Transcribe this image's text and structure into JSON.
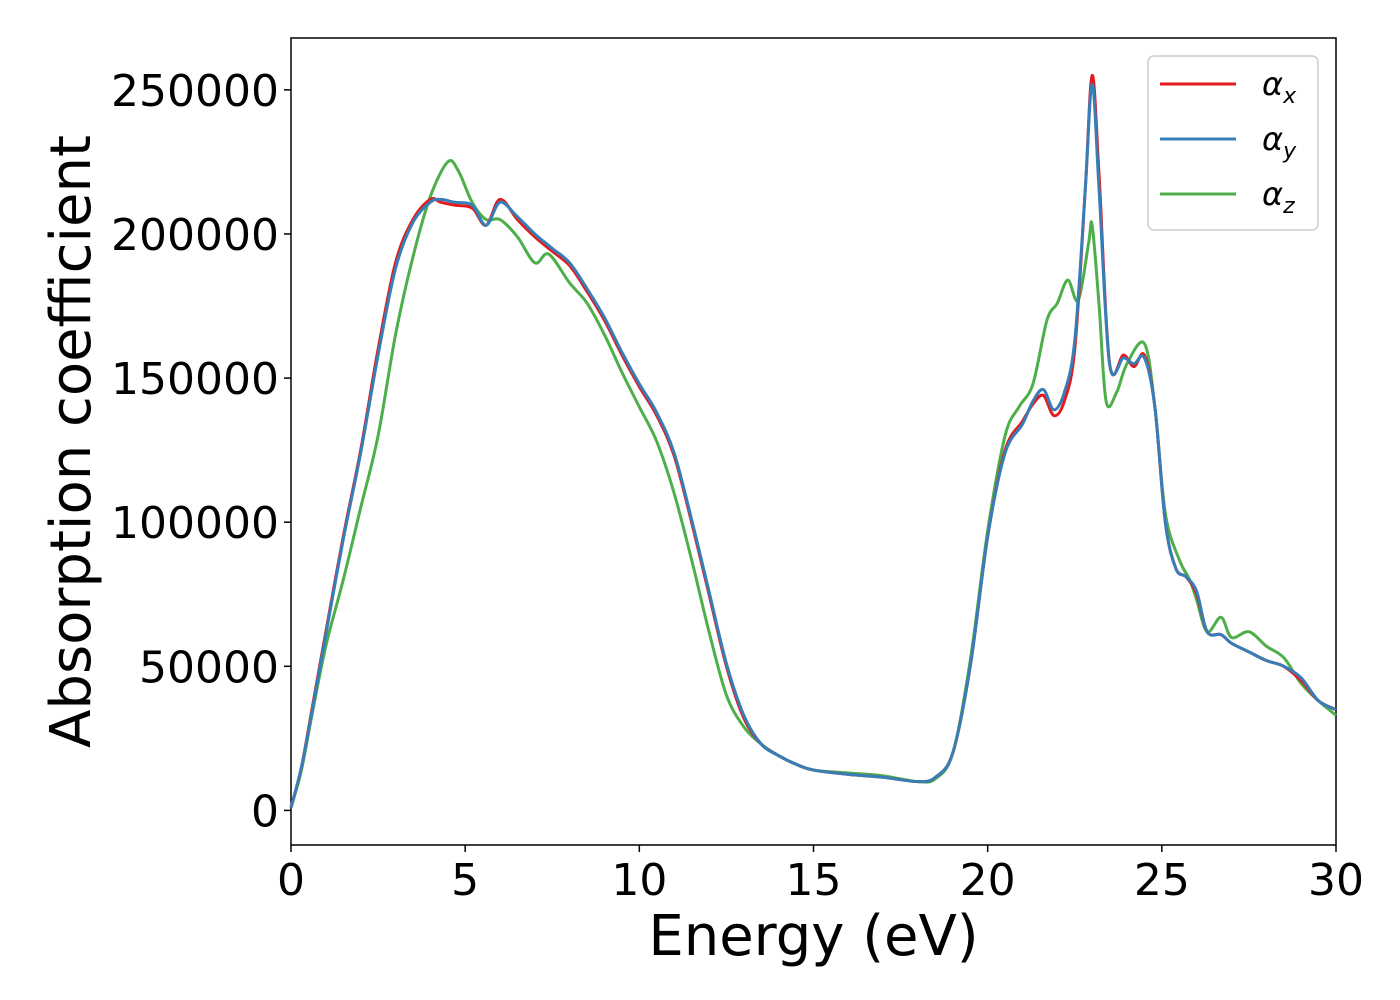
{
  "chart_data": {
    "type": "line",
    "title": "",
    "xlabel": "Energy (eV)",
    "ylabel": "Absorption coefficient",
    "xlim": [
      0,
      30
    ],
    "ylim": [
      -12000,
      268000
    ],
    "xticks": [
      0,
      5,
      10,
      15,
      20,
      25,
      30
    ],
    "yticks": [
      0,
      50000,
      100000,
      150000,
      200000,
      250000
    ],
    "grid": false,
    "legend_position": "top-right",
    "series": [
      {
        "name": "αx",
        "legend_base": "α",
        "legend_sub": "x",
        "color": "#e41a1c",
        "x": [
          0,
          0.3,
          0.6,
          1.0,
          1.5,
          2.0,
          2.5,
          3.0,
          3.5,
          4.0,
          4.3,
          4.7,
          5.2,
          5.6,
          6.0,
          6.5,
          7.0,
          7.5,
          8.0,
          8.5,
          9.0,
          9.5,
          10.0,
          10.5,
          11.0,
          11.5,
          12.0,
          12.5,
          13.0,
          13.5,
          14.0,
          14.5,
          15.0,
          16.0,
          17.0,
          18.0,
          18.5,
          19.0,
          19.5,
          20.0,
          20.5,
          21.0,
          21.3,
          21.6,
          21.9,
          22.2,
          22.5,
          22.8,
          23.0,
          23.2,
          23.5,
          23.9,
          24.2,
          24.5,
          24.8,
          25.1,
          25.4,
          25.7,
          26.0,
          26.3,
          26.7,
          27.0,
          27.5,
          28.0,
          28.5,
          29.0,
          29.5,
          30.0
        ],
        "values": [
          1000,
          15000,
          35000,
          62000,
          95000,
          125000,
          160000,
          190000,
          205000,
          212000,
          211000,
          210000,
          209000,
          203000,
          212000,
          205000,
          199000,
          194000,
          189000,
          180000,
          170000,
          158000,
          147000,
          137000,
          123000,
          100000,
          75000,
          50000,
          32000,
          23000,
          19000,
          16000,
          14000,
          12500,
          11500,
          10000,
          11500,
          20000,
          50000,
          95000,
          125000,
          135000,
          141000,
          144000,
          137000,
          142000,
          160000,
          215000,
          255000,
          220000,
          155000,
          158000,
          154000,
          158000,
          140000,
          100000,
          84000,
          81000,
          75000,
          62000,
          61000,
          58000,
          55000,
          52000,
          50000,
          45000,
          38000,
          35000
        ]
      },
      {
        "name": "αy",
        "legend_base": "α",
        "legend_sub": "y",
        "color": "#377eb8",
        "x": [
          0,
          0.3,
          0.6,
          1.0,
          1.5,
          2.0,
          2.5,
          3.0,
          3.5,
          4.0,
          4.3,
          4.7,
          5.2,
          5.6,
          6.0,
          6.5,
          7.0,
          7.5,
          8.0,
          8.5,
          9.0,
          9.5,
          10.0,
          10.5,
          11.0,
          11.5,
          12.0,
          12.5,
          13.0,
          13.5,
          14.0,
          14.5,
          15.0,
          16.0,
          17.0,
          18.0,
          18.5,
          19.0,
          19.5,
          20.0,
          20.5,
          21.0,
          21.3,
          21.6,
          21.9,
          22.2,
          22.5,
          22.8,
          23.0,
          23.2,
          23.5,
          23.9,
          24.2,
          24.5,
          24.8,
          25.1,
          25.4,
          25.7,
          26.0,
          26.3,
          26.7,
          27.0,
          27.5,
          28.0,
          28.5,
          29.0,
          29.5,
          30.0
        ],
        "values": [
          1000,
          15000,
          34000,
          61000,
          94000,
          124000,
          158000,
          188000,
          204000,
          211000,
          212000,
          211000,
          210000,
          203000,
          211000,
          206000,
          200000,
          195000,
          190000,
          181000,
          171000,
          159000,
          148000,
          138000,
          124000,
          101000,
          76000,
          51000,
          33000,
          23000,
          19000,
          16000,
          14000,
          12500,
          11500,
          10000,
          11500,
          20000,
          50000,
          95000,
          124000,
          134000,
          142000,
          146000,
          139000,
          145000,
          163000,
          215000,
          252000,
          215000,
          155000,
          157000,
          155000,
          157000,
          140000,
          100000,
          84000,
          81000,
          76000,
          62000,
          61000,
          58000,
          55000,
          52000,
          50000,
          46000,
          38000,
          35000
        ]
      },
      {
        "name": "αz",
        "legend_base": "α",
        "legend_sub": "z",
        "color": "#4daf4a",
        "x": [
          0,
          0.3,
          0.6,
          1.0,
          1.5,
          2.0,
          2.5,
          3.0,
          3.5,
          4.0,
          4.5,
          4.8,
          5.2,
          5.6,
          6.0,
          6.5,
          7.0,
          7.4,
          8.0,
          8.5,
          9.0,
          9.5,
          10.0,
          10.5,
          11.0,
          11.5,
          12.0,
          12.5,
          13.0,
          13.5,
          14.0,
          14.5,
          15.0,
          16.0,
          17.0,
          18.0,
          18.5,
          19.0,
          19.5,
          20.0,
          20.5,
          20.9,
          21.3,
          21.7,
          22.0,
          22.3,
          22.6,
          22.9,
          23.0,
          23.2,
          23.4,
          23.7,
          24.0,
          24.5,
          24.8,
          25.1,
          25.5,
          25.8,
          26.0,
          26.3,
          26.7,
          27.0,
          27.5,
          28.0,
          28.5,
          29.0,
          29.5,
          30.0
        ],
        "values": [
          1000,
          14000,
          33000,
          57000,
          80000,
          105000,
          130000,
          165000,
          192000,
          213000,
          225000,
          222000,
          211000,
          205000,
          205000,
          199000,
          190000,
          193000,
          183000,
          176000,
          165000,
          152000,
          140000,
          128000,
          110000,
          87000,
          62000,
          40000,
          29000,
          23000,
          19000,
          16000,
          14000,
          13000,
          12000,
          10000,
          11000,
          20000,
          52000,
          97000,
          130000,
          140000,
          148000,
          170000,
          176000,
          184000,
          177000,
          197000,
          203000,
          175000,
          142000,
          145000,
          155000,
          162000,
          140000,
          103000,
          87000,
          80000,
          73000,
          62000,
          67000,
          60000,
          62000,
          57000,
          53000,
          44000,
          38000,
          33000
        ]
      }
    ]
  }
}
